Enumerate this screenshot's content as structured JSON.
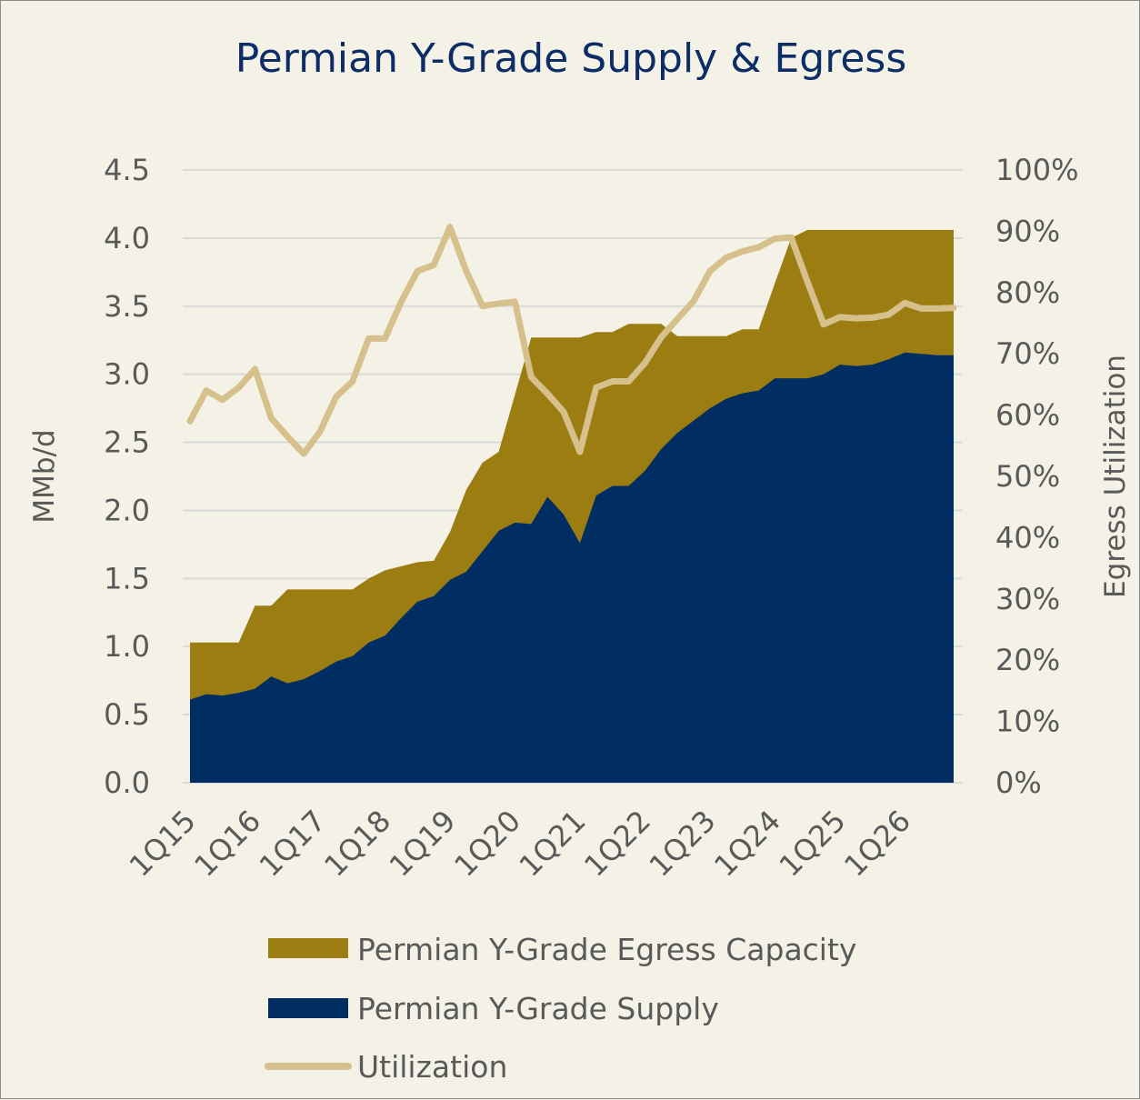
{
  "chart_data": {
    "type": "area",
    "title": "Permian Y-Grade Supply & Egress",
    "ylabel": "MMb/d",
    "y2label": "Egress Utilization",
    "ylim": [
      0,
      4.5
    ],
    "y2lim": [
      0,
      1.0
    ],
    "yticks": [
      "0.0",
      "0.5",
      "1.0",
      "1.5",
      "2.0",
      "2.5",
      "3.0",
      "3.5",
      "4.0",
      "4.5"
    ],
    "y2ticks": [
      "0%",
      "10%",
      "20%",
      "30%",
      "40%",
      "50%",
      "60%",
      "70%",
      "80%",
      "90%",
      "100%"
    ],
    "xtick_labels": [
      "1Q15",
      "1Q16",
      "1Q17",
      "1Q18",
      "1Q19",
      "1Q20",
      "1Q21",
      "1Q22",
      "1Q23",
      "1Q24",
      "1Q25",
      "1Q26"
    ],
    "x": [
      "1Q15",
      "2Q15",
      "3Q15",
      "4Q15",
      "1Q16",
      "2Q16",
      "3Q16",
      "4Q16",
      "1Q17",
      "2Q17",
      "3Q17",
      "4Q17",
      "1Q18",
      "2Q18",
      "3Q18",
      "4Q18",
      "1Q19",
      "2Q19",
      "3Q19",
      "4Q19",
      "1Q20",
      "2Q20",
      "3Q20",
      "4Q20",
      "1Q21",
      "2Q21",
      "3Q21",
      "4Q21",
      "1Q22",
      "2Q22",
      "3Q22",
      "4Q22",
      "1Q23",
      "2Q23",
      "3Q23",
      "4Q23",
      "1Q24",
      "2Q24",
      "3Q24",
      "4Q24",
      "1Q25",
      "2Q25",
      "3Q25",
      "4Q25",
      "1Q26",
      "2Q26",
      "3Q26",
      "4Q26"
    ],
    "grid": true,
    "legend_position": "bottom",
    "series": [
      {
        "name": "Permian Y-Grade Egress Capacity",
        "type": "area",
        "axis": "left",
        "color": "#9b7d12",
        "values": [
          1.03,
          1.03,
          1.03,
          1.03,
          1.3,
          1.3,
          1.42,
          1.42,
          1.42,
          1.42,
          1.42,
          1.5,
          1.56,
          1.59,
          1.62,
          1.63,
          1.84,
          2.15,
          2.35,
          2.43,
          2.85,
          3.27,
          3.27,
          3.27,
          3.27,
          3.31,
          3.31,
          3.37,
          3.37,
          3.37,
          3.28,
          3.28,
          3.28,
          3.28,
          3.33,
          3.33,
          3.67,
          4.0,
          4.06,
          4.06,
          4.06,
          4.06,
          4.06,
          4.06,
          4.06,
          4.06,
          4.06,
          4.06
        ]
      },
      {
        "name": "Permian Y-Grade Supply",
        "type": "area",
        "axis": "left",
        "color": "#002e62",
        "values": [
          0.61,
          0.65,
          0.64,
          0.66,
          0.69,
          0.78,
          0.73,
          0.76,
          0.82,
          0.89,
          0.93,
          1.03,
          1.08,
          1.21,
          1.33,
          1.37,
          1.49,
          1.55,
          1.7,
          1.85,
          1.91,
          1.9,
          2.1,
          1.97,
          1.76,
          2.11,
          2.18,
          2.18,
          2.29,
          2.45,
          2.57,
          2.66,
          2.75,
          2.82,
          2.86,
          2.88,
          2.97,
          2.97,
          2.97,
          3.0,
          3.07,
          3.06,
          3.07,
          3.11,
          3.16,
          3.15,
          3.14,
          3.14
        ]
      },
      {
        "name": "Utilization",
        "type": "line",
        "axis": "right",
        "color": "#d6c08c",
        "values": [
          0.59,
          0.64,
          0.625,
          0.645,
          0.675,
          0.595,
          0.565,
          0.537,
          0.573,
          0.63,
          0.655,
          0.725,
          0.725,
          0.785,
          0.835,
          0.845,
          0.907,
          0.835,
          0.778,
          0.782,
          0.785,
          0.662,
          0.635,
          0.605,
          0.54,
          0.645,
          0.655,
          0.655,
          0.685,
          0.727,
          0.757,
          0.786,
          0.835,
          0.857,
          0.867,
          0.874,
          0.888,
          0.89,
          0.818,
          0.748,
          0.76,
          0.758,
          0.759,
          0.764,
          0.783,
          0.774,
          0.774,
          0.775
        ]
      }
    ]
  }
}
